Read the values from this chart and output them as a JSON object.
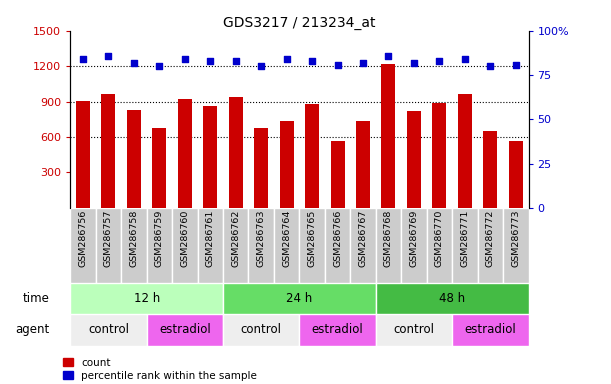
{
  "title": "GDS3217 / 213234_at",
  "samples": [
    "GSM286756",
    "GSM286757",
    "GSM286758",
    "GSM286759",
    "GSM286760",
    "GSM286761",
    "GSM286762",
    "GSM286763",
    "GSM286764",
    "GSM286765",
    "GSM286766",
    "GSM286767",
    "GSM286768",
    "GSM286769",
    "GSM286770",
    "GSM286771",
    "GSM286772",
    "GSM286773"
  ],
  "counts": [
    905,
    970,
    830,
    680,
    920,
    860,
    940,
    680,
    740,
    880,
    570,
    740,
    1220,
    820,
    890,
    970,
    650,
    570
  ],
  "percentiles": [
    84,
    86,
    82,
    80,
    84,
    83,
    83,
    80,
    84,
    83,
    81,
    82,
    86,
    82,
    83,
    84,
    80,
    81
  ],
  "bar_color": "#cc0000",
  "dot_color": "#0000cc",
  "ylim_left": [
    0,
    1500
  ],
  "ylim_right": [
    0,
    100
  ],
  "yticks_left": [
    300,
    600,
    900,
    1200,
    1500
  ],
  "yticks_right": [
    0,
    25,
    50,
    75,
    100
  ],
  "grid_values": [
    600,
    900,
    1200
  ],
  "time_groups": [
    {
      "label": "12 h",
      "start": 0,
      "end": 6,
      "color": "#bbffbb"
    },
    {
      "label": "24 h",
      "start": 6,
      "end": 12,
      "color": "#66dd66"
    },
    {
      "label": "48 h",
      "start": 12,
      "end": 18,
      "color": "#44bb44"
    }
  ],
  "agent_groups": [
    {
      "label": "control",
      "start": 0,
      "end": 3,
      "color": "#eeeeee"
    },
    {
      "label": "estradiol",
      "start": 3,
      "end": 6,
      "color": "#ee66ee"
    },
    {
      "label": "control",
      "start": 6,
      "end": 9,
      "color": "#eeeeee"
    },
    {
      "label": "estradiol",
      "start": 9,
      "end": 12,
      "color": "#ee66ee"
    },
    {
      "label": "control",
      "start": 12,
      "end": 15,
      "color": "#eeeeee"
    },
    {
      "label": "estradiol",
      "start": 15,
      "end": 18,
      "color": "#ee66ee"
    }
  ],
  "tick_color_left": "#cc0000",
  "tick_color_right": "#0000cc",
  "bar_width": 0.55,
  "time_label": "time",
  "agent_label": "agent",
  "legend_count_label": "count",
  "legend_pct_label": "percentile rank within the sample",
  "sample_bg_color": "#cccccc",
  "sample_border_color": "#ffffff"
}
